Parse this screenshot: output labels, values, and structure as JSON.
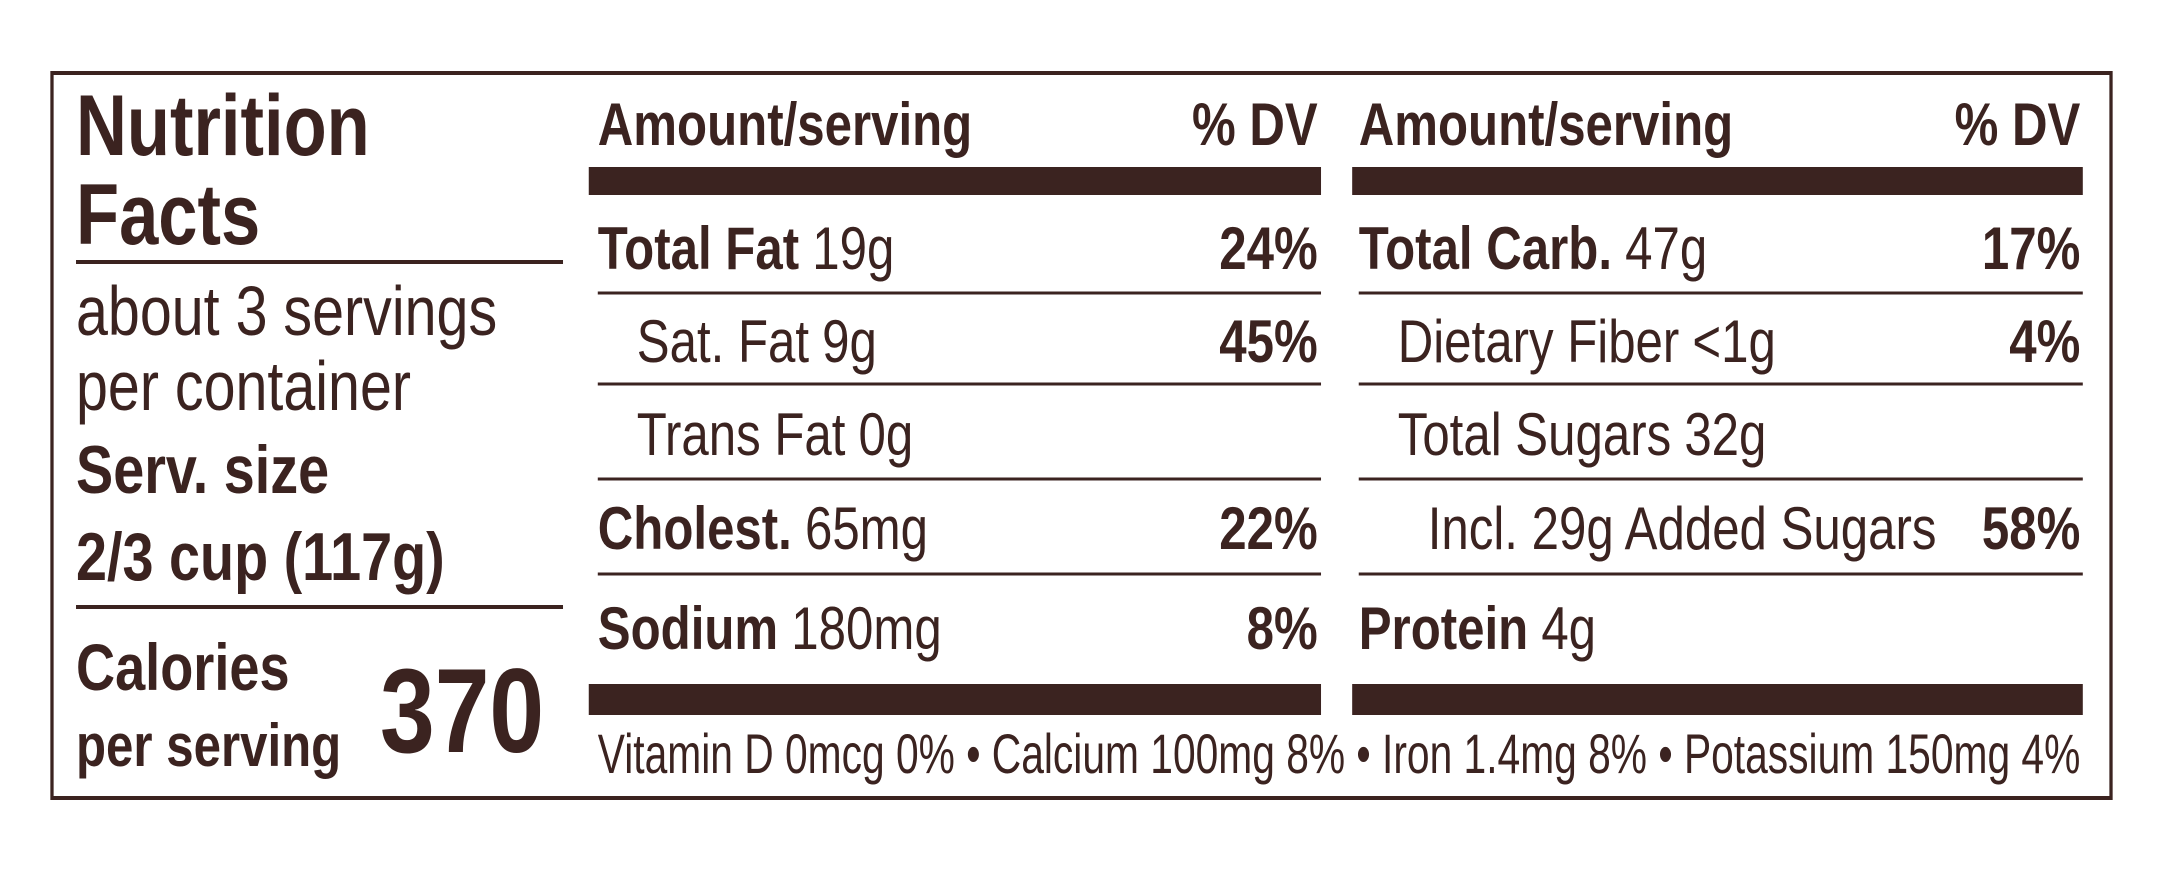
{
  "title": [
    "Nutrition",
    "Facts"
  ],
  "servings": [
    "about 3 servings",
    "per container"
  ],
  "serving_size_label": "Serv. size",
  "serving_size": "2/3 cup (117g)",
  "calories_label": [
    "Calories",
    "per serving"
  ],
  "calories": "370",
  "columns": [
    {
      "header_amount": "Amount/serving",
      "header_dv": "% DV",
      "rows": [
        {
          "name": "Total Fat",
          "amount": "19g",
          "dv": "24%"
        },
        {
          "name": "Sat. Fat",
          "amount": "9g",
          "dv": "45%"
        },
        {
          "name": "Trans Fat",
          "amount": "0g"
        },
        {
          "name": "Cholest.",
          "amount": "65mg",
          "dv": "22%"
        },
        {
          "name": "Sodium",
          "amount": "180mg",
          "dv": "8%"
        }
      ]
    },
    {
      "header_amount": "Amount/serving",
      "header_dv": "% DV",
      "rows": [
        {
          "name": "Total Carb.",
          "amount": "47g",
          "dv": "17%"
        },
        {
          "name": "Dietary Fiber",
          "amount": "<1g",
          "dv": "4%"
        },
        {
          "name": "Total Sugars",
          "amount": "32g"
        },
        {
          "name": "Incl. 29g Added Sugars",
          "dv": "58%"
        },
        {
          "name": "Protein",
          "amount": "4g"
        }
      ]
    }
  ],
  "footer": "Vitamin D 0mcg 0% • Calcium 100mg 8% • Iron 1.4mg 8% • Potassium 150mg 4%"
}
